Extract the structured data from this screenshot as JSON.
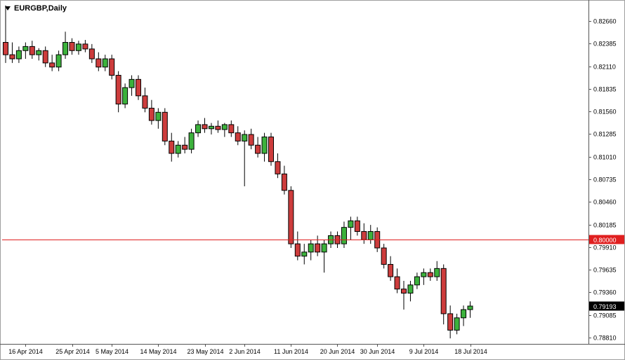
{
  "window": {
    "symbol_label": "EURGBP,Daily"
  },
  "icons": {
    "symbol_dropdown": "triangle-down-icon"
  },
  "colors": {
    "background": "#ffffff",
    "frame": "#9e9e9e",
    "axis_line": "#555555",
    "axis_text": "#000000",
    "bull_fill": "#3cb23c",
    "bear_fill": "#cd3c3c",
    "candle_outline": "#000000",
    "wick": "#000000",
    "hline": "#e01f1f",
    "hline_label_bg": "#e01f1f",
    "hline_label_text": "#ffffff",
    "bid_label_bg": "#000000",
    "bid_label_text": "#ffffff"
  },
  "chart_data": {
    "type": "candlestick",
    "title": "EURGBP, Daily",
    "symbol": "EURGBP",
    "timeframe": "Daily",
    "ylim": [
      0.78733,
      0.8289
    ],
    "grid": false,
    "legend": false,
    "y_axis_ticks": [
      "0.82660",
      "0.82385",
      "0.82110",
      "0.81835",
      "0.81560",
      "0.81285",
      "0.81010",
      "0.80735",
      "0.80460",
      "0.80185",
      "0.79910",
      "0.79635",
      "0.79360",
      "0.79085",
      "0.78810"
    ],
    "x_axis_labels": [
      {
        "index": 3,
        "label": "16 Apr 2014"
      },
      {
        "index": 10,
        "label": "25 Apr 2014"
      },
      {
        "index": 16,
        "label": "5 May 2014"
      },
      {
        "index": 23,
        "label": "14 May 2014"
      },
      {
        "index": 30,
        "label": "23 May 2014"
      },
      {
        "index": 36,
        "label": "2 Jun 2014"
      },
      {
        "index": 43,
        "label": "11 Jun 2014"
      },
      {
        "index": 50,
        "label": "20 Jun 2014"
      },
      {
        "index": 56,
        "label": "30 Jun 2014"
      },
      {
        "index": 63,
        "label": "9 Jul 2014"
      },
      {
        "index": 70,
        "label": "18 Jul 2014"
      }
    ],
    "hline": {
      "value": 0.8,
      "label": "0.80000"
    },
    "last_price": {
      "value": 0.79193,
      "label": "0.79193"
    },
    "candles": [
      {
        "date": "11 Apr 2014",
        "o": 0.824,
        "h": 0.8285,
        "l": 0.8215,
        "c": 0.8225
      },
      {
        "date": "14 Apr 2014",
        "o": 0.8225,
        "h": 0.824,
        "l": 0.8215,
        "c": 0.822
      },
      {
        "date": "15 Apr 2014",
        "o": 0.822,
        "h": 0.8235,
        "l": 0.8215,
        "c": 0.823
      },
      {
        "date": "16 Apr 2014",
        "o": 0.823,
        "h": 0.824,
        "l": 0.822,
        "c": 0.8235
      },
      {
        "date": "17 Apr 2014",
        "o": 0.8235,
        "h": 0.8242,
        "l": 0.822,
        "c": 0.8225
      },
      {
        "date": "18 Apr 2014",
        "o": 0.8225,
        "h": 0.8233,
        "l": 0.8218,
        "c": 0.823
      },
      {
        "date": "21 Apr 2014",
        "o": 0.823,
        "h": 0.8235,
        "l": 0.821,
        "c": 0.8215
      },
      {
        "date": "22 Apr 2014",
        "o": 0.8215,
        "h": 0.8225,
        "l": 0.8205,
        "c": 0.821
      },
      {
        "date": "23 Apr 2014",
        "o": 0.821,
        "h": 0.823,
        "l": 0.8205,
        "c": 0.8225
      },
      {
        "date": "24 Apr 2014",
        "o": 0.8225,
        "h": 0.8253,
        "l": 0.822,
        "c": 0.824
      },
      {
        "date": "25 Apr 2014",
        "o": 0.824,
        "h": 0.8245,
        "l": 0.8225,
        "c": 0.823
      },
      {
        "date": "28 Apr 2014",
        "o": 0.823,
        "h": 0.8242,
        "l": 0.8225,
        "c": 0.8238
      },
      {
        "date": "29 Apr 2014",
        "o": 0.8238,
        "h": 0.8243,
        "l": 0.8228,
        "c": 0.8232
      },
      {
        "date": "30 Apr 2014",
        "o": 0.8232,
        "h": 0.8238,
        "l": 0.8215,
        "c": 0.822
      },
      {
        "date": "1 May 2014",
        "o": 0.822,
        "h": 0.8228,
        "l": 0.8205,
        "c": 0.821
      },
      {
        "date": "2 May 2014",
        "o": 0.821,
        "h": 0.8225,
        "l": 0.8205,
        "c": 0.822
      },
      {
        "date": "5 May 2014",
        "o": 0.822,
        "h": 0.8225,
        "l": 0.8195,
        "c": 0.82
      },
      {
        "date": "6 May 2014",
        "o": 0.82,
        "h": 0.8205,
        "l": 0.8155,
        "c": 0.8165
      },
      {
        "date": "7 May 2014",
        "o": 0.8165,
        "h": 0.819,
        "l": 0.816,
        "c": 0.8185
      },
      {
        "date": "8 May 2014",
        "o": 0.8185,
        "h": 0.82,
        "l": 0.8175,
        "c": 0.8195
      },
      {
        "date": "9 May 2014",
        "o": 0.8195,
        "h": 0.82,
        "l": 0.817,
        "c": 0.8175
      },
      {
        "date": "12 May 2014",
        "o": 0.8175,
        "h": 0.8185,
        "l": 0.8155,
        "c": 0.816
      },
      {
        "date": "13 May 2014",
        "o": 0.816,
        "h": 0.817,
        "l": 0.814,
        "c": 0.8145
      },
      {
        "date": "14 May 2014",
        "o": 0.8145,
        "h": 0.816,
        "l": 0.8135,
        "c": 0.8155
      },
      {
        "date": "15 May 2014",
        "o": 0.8155,
        "h": 0.816,
        "l": 0.8115,
        "c": 0.812
      },
      {
        "date": "16 May 2014",
        "o": 0.812,
        "h": 0.813,
        "l": 0.8095,
        "c": 0.8105
      },
      {
        "date": "19 May 2014",
        "o": 0.8105,
        "h": 0.812,
        "l": 0.81,
        "c": 0.8115
      },
      {
        "date": "20 May 2014",
        "o": 0.8115,
        "h": 0.8125,
        "l": 0.8105,
        "c": 0.811
      },
      {
        "date": "21 May 2014",
        "o": 0.811,
        "h": 0.8135,
        "l": 0.8105,
        "c": 0.813
      },
      {
        "date": "22 May 2014",
        "o": 0.813,
        "h": 0.8145,
        "l": 0.8125,
        "c": 0.814
      },
      {
        "date": "23 May 2014",
        "o": 0.814,
        "h": 0.8148,
        "l": 0.813,
        "c": 0.8135
      },
      {
        "date": "26 May 2014",
        "o": 0.8135,
        "h": 0.8142,
        "l": 0.8128,
        "c": 0.8138
      },
      {
        "date": "27 May 2014",
        "o": 0.8138,
        "h": 0.8145,
        "l": 0.813,
        "c": 0.8134
      },
      {
        "date": "28 May 2014",
        "o": 0.8134,
        "h": 0.8142,
        "l": 0.8125,
        "c": 0.814
      },
      {
        "date": "29 May 2014",
        "o": 0.814,
        "h": 0.8145,
        "l": 0.8125,
        "c": 0.813
      },
      {
        "date": "30 May 2014",
        "o": 0.813,
        "h": 0.8138,
        "l": 0.8115,
        "c": 0.812
      },
      {
        "date": "2 Jun 2014",
        "o": 0.812,
        "h": 0.8133,
        "l": 0.8065,
        "c": 0.8128
      },
      {
        "date": "3 Jun 2014",
        "o": 0.8128,
        "h": 0.8135,
        "l": 0.811,
        "c": 0.8115
      },
      {
        "date": "4 Jun 2014",
        "o": 0.8115,
        "h": 0.8125,
        "l": 0.81,
        "c": 0.8105
      },
      {
        "date": "5 Jun 2014",
        "o": 0.8105,
        "h": 0.813,
        "l": 0.8095,
        "c": 0.8125
      },
      {
        "date": "6 Jun 2014",
        "o": 0.8125,
        "h": 0.813,
        "l": 0.809,
        "c": 0.8095
      },
      {
        "date": "9 Jun 2014",
        "o": 0.8095,
        "h": 0.8105,
        "l": 0.8075,
        "c": 0.808
      },
      {
        "date": "10 Jun 2014",
        "o": 0.808,
        "h": 0.809,
        "l": 0.8055,
        "c": 0.806
      },
      {
        "date": "11 Jun 2014",
        "o": 0.806,
        "h": 0.8065,
        "l": 0.799,
        "c": 0.7995
      },
      {
        "date": "12 Jun 2014",
        "o": 0.7995,
        "h": 0.801,
        "l": 0.7975,
        "c": 0.798
      },
      {
        "date": "13 Jun 2014",
        "o": 0.798,
        "h": 0.7995,
        "l": 0.797,
        "c": 0.7985
      },
      {
        "date": "16 Jun 2014",
        "o": 0.7985,
        "h": 0.8,
        "l": 0.7975,
        "c": 0.7995
      },
      {
        "date": "17 Jun 2014",
        "o": 0.7995,
        "h": 0.8005,
        "l": 0.798,
        "c": 0.7985
      },
      {
        "date": "18 Jun 2014",
        "o": 0.7985,
        "h": 0.8,
        "l": 0.796,
        "c": 0.7995
      },
      {
        "date": "19 Jun 2014",
        "o": 0.7995,
        "h": 0.801,
        "l": 0.799,
        "c": 0.8005
      },
      {
        "date": "20 Jun 2014",
        "o": 0.8005,
        "h": 0.801,
        "l": 0.799,
        "c": 0.7995
      },
      {
        "date": "23 Jun 2014",
        "o": 0.7995,
        "h": 0.8022,
        "l": 0.799,
        "c": 0.8015
      },
      {
        "date": "24 Jun 2014",
        "o": 0.8015,
        "h": 0.8028,
        "l": 0.8,
        "c": 0.8023
      },
      {
        "date": "25 Jun 2014",
        "o": 0.8023,
        "h": 0.8028,
        "l": 0.8005,
        "c": 0.801
      },
      {
        "date": "26 Jun 2014",
        "o": 0.801,
        "h": 0.802,
        "l": 0.7995,
        "c": 0.8
      },
      {
        "date": "27 Jun 2014",
        "o": 0.8,
        "h": 0.8018,
        "l": 0.7995,
        "c": 0.801
      },
      {
        "date": "30 Jun 2014",
        "o": 0.801,
        "h": 0.8015,
        "l": 0.7985,
        "c": 0.799
      },
      {
        "date": "1 Jul 2014",
        "o": 0.799,
        "h": 0.7995,
        "l": 0.7965,
        "c": 0.797
      },
      {
        "date": "2 Jul 2014",
        "o": 0.797,
        "h": 0.798,
        "l": 0.795,
        "c": 0.7955
      },
      {
        "date": "3 Jul 2014",
        "o": 0.7955,
        "h": 0.7965,
        "l": 0.7935,
        "c": 0.794
      },
      {
        "date": "4 Jul 2014",
        "o": 0.794,
        "h": 0.795,
        "l": 0.7915,
        "c": 0.7935
      },
      {
        "date": "7 Jul 2014",
        "o": 0.7935,
        "h": 0.795,
        "l": 0.7925,
        "c": 0.7945
      },
      {
        "date": "8 Jul 2014",
        "o": 0.7945,
        "h": 0.796,
        "l": 0.794,
        "c": 0.7955
      },
      {
        "date": "9 Jul 2014",
        "o": 0.7955,
        "h": 0.7965,
        "l": 0.7945,
        "c": 0.796
      },
      {
        "date": "10 Jul 2014",
        "o": 0.796,
        "h": 0.7965,
        "l": 0.795,
        "c": 0.7955
      },
      {
        "date": "11 Jul 2014",
        "o": 0.7955,
        "h": 0.7974,
        "l": 0.795,
        "c": 0.7965
      },
      {
        "date": "14 Jul 2014",
        "o": 0.7965,
        "h": 0.797,
        "l": 0.7897,
        "c": 0.791
      },
      {
        "date": "15 Jul 2014",
        "o": 0.791,
        "h": 0.792,
        "l": 0.788,
        "c": 0.789
      },
      {
        "date": "16 Jul 2014",
        "o": 0.789,
        "h": 0.791,
        "l": 0.7885,
        "c": 0.7905
      },
      {
        "date": "17 Jul 2014",
        "o": 0.7905,
        "h": 0.792,
        "l": 0.7895,
        "c": 0.7915
      },
      {
        "date": "18 Jul 2014",
        "o": 0.7915,
        "h": 0.7925,
        "l": 0.7905,
        "c": 0.79193
      }
    ]
  }
}
